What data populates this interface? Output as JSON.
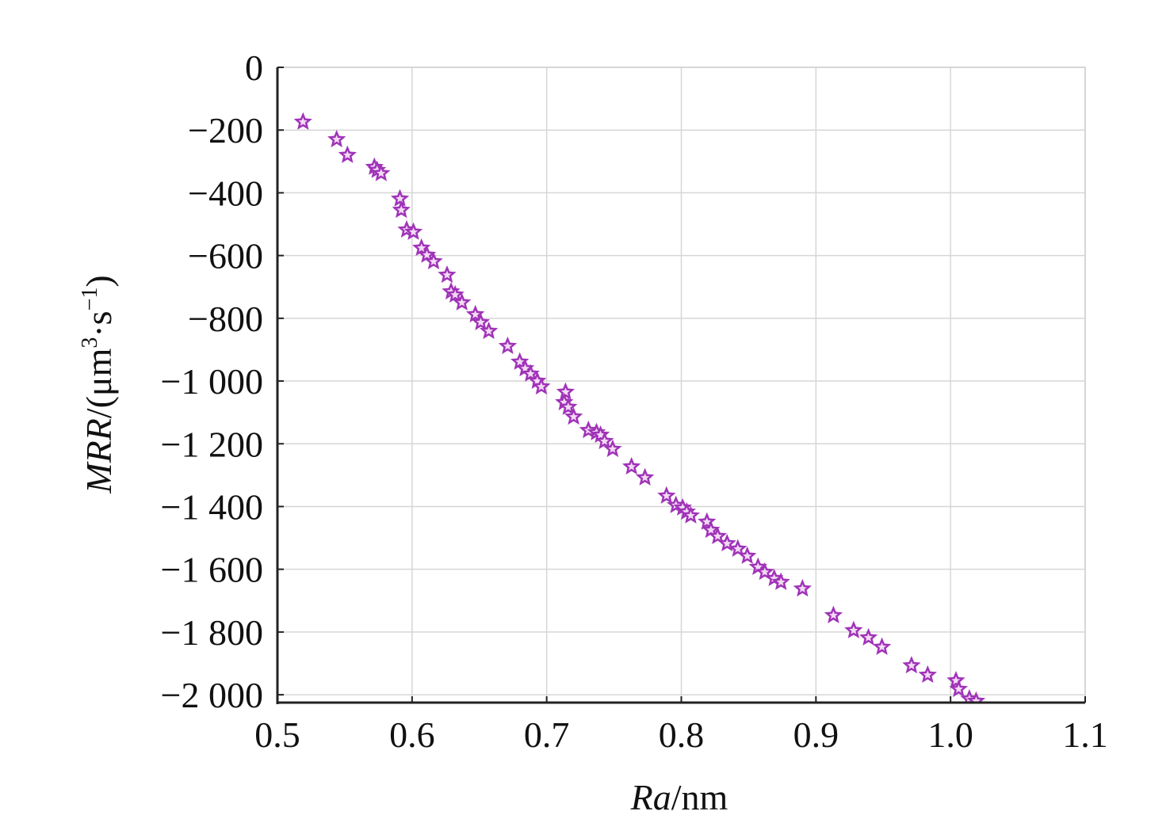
{
  "chart_data": {
    "type": "scatter",
    "x_label_parts": [
      "Ra",
      "/nm"
    ],
    "y_label_parts": [
      "MRR",
      "/(μm",
      "3",
      "·s",
      "−1",
      ")"
    ],
    "xlim": [
      0.5,
      1.1
    ],
    "xticks": [
      0.5,
      0.6,
      0.7,
      0.8,
      0.9,
      {
        "value": 1,
        "label": "1.0"
      },
      1.1
    ],
    "ylim": [
      -2025,
      0
    ],
    "yticks": [
      0,
      {
        "value": -200,
        "label": "−200"
      },
      {
        "value": -400,
        "label": "−400"
      },
      {
        "value": -600,
        "label": "−600"
      },
      {
        "value": -800,
        "label": "−800"
      },
      {
        "value": -1000,
        "label": "−1 000"
      },
      {
        "value": -1200,
        "label": "−1 200"
      },
      {
        "value": -1400,
        "label": "−1 400"
      },
      {
        "value": -1600,
        "label": "−1 600"
      },
      {
        "value": -1800,
        "label": "−1 800"
      },
      {
        "value": -2000,
        "label": "−2 000"
      }
    ],
    "grid": true,
    "color": "#a033b8",
    "x": [
      0.519,
      0.544,
      0.552,
      0.572,
      0.574,
      0.577,
      0.591,
      0.592,
      0.596,
      0.601,
      0.607,
      0.611,
      0.616,
      0.626,
      0.629,
      0.632,
      0.637,
      0.647,
      0.651,
      0.657,
      0.671,
      0.68,
      0.684,
      0.688,
      0.693,
      0.696,
      0.714,
      0.713,
      0.716,
      0.72,
      0.731,
      0.737,
      0.74,
      0.743,
      0.749,
      0.763,
      0.773,
      0.789,
      0.796,
      0.801,
      0.804,
      0.807,
      0.819,
      0.822,
      0.827,
      0.834,
      0.842,
      0.849,
      0.857,
      0.862,
      0.869,
      0.874,
      0.89,
      0.913,
      0.928,
      0.939,
      0.949,
      0.971,
      0.983,
      1.004,
      1.006,
      1.014,
      1.019
    ],
    "values": [
      -174,
      -230,
      -280,
      -318,
      -328,
      -338,
      -419,
      -455,
      -518,
      -525,
      -576,
      -598,
      -619,
      -662,
      -715,
      -725,
      -750,
      -788,
      -813,
      -841,
      -889,
      -939,
      -960,
      -977,
      -1000,
      -1018,
      -1035,
      -1068,
      -1083,
      -1114,
      -1157,
      -1164,
      -1172,
      -1192,
      -1217,
      -1273,
      -1308,
      -1366,
      -1396,
      -1404,
      -1417,
      -1429,
      -1449,
      -1475,
      -1495,
      -1518,
      -1535,
      -1558,
      -1593,
      -1609,
      -1629,
      -1641,
      -1662,
      -1747,
      -1795,
      -1818,
      -1848,
      -1907,
      -1937,
      -1955,
      -1982,
      -2013,
      -2020
    ]
  }
}
